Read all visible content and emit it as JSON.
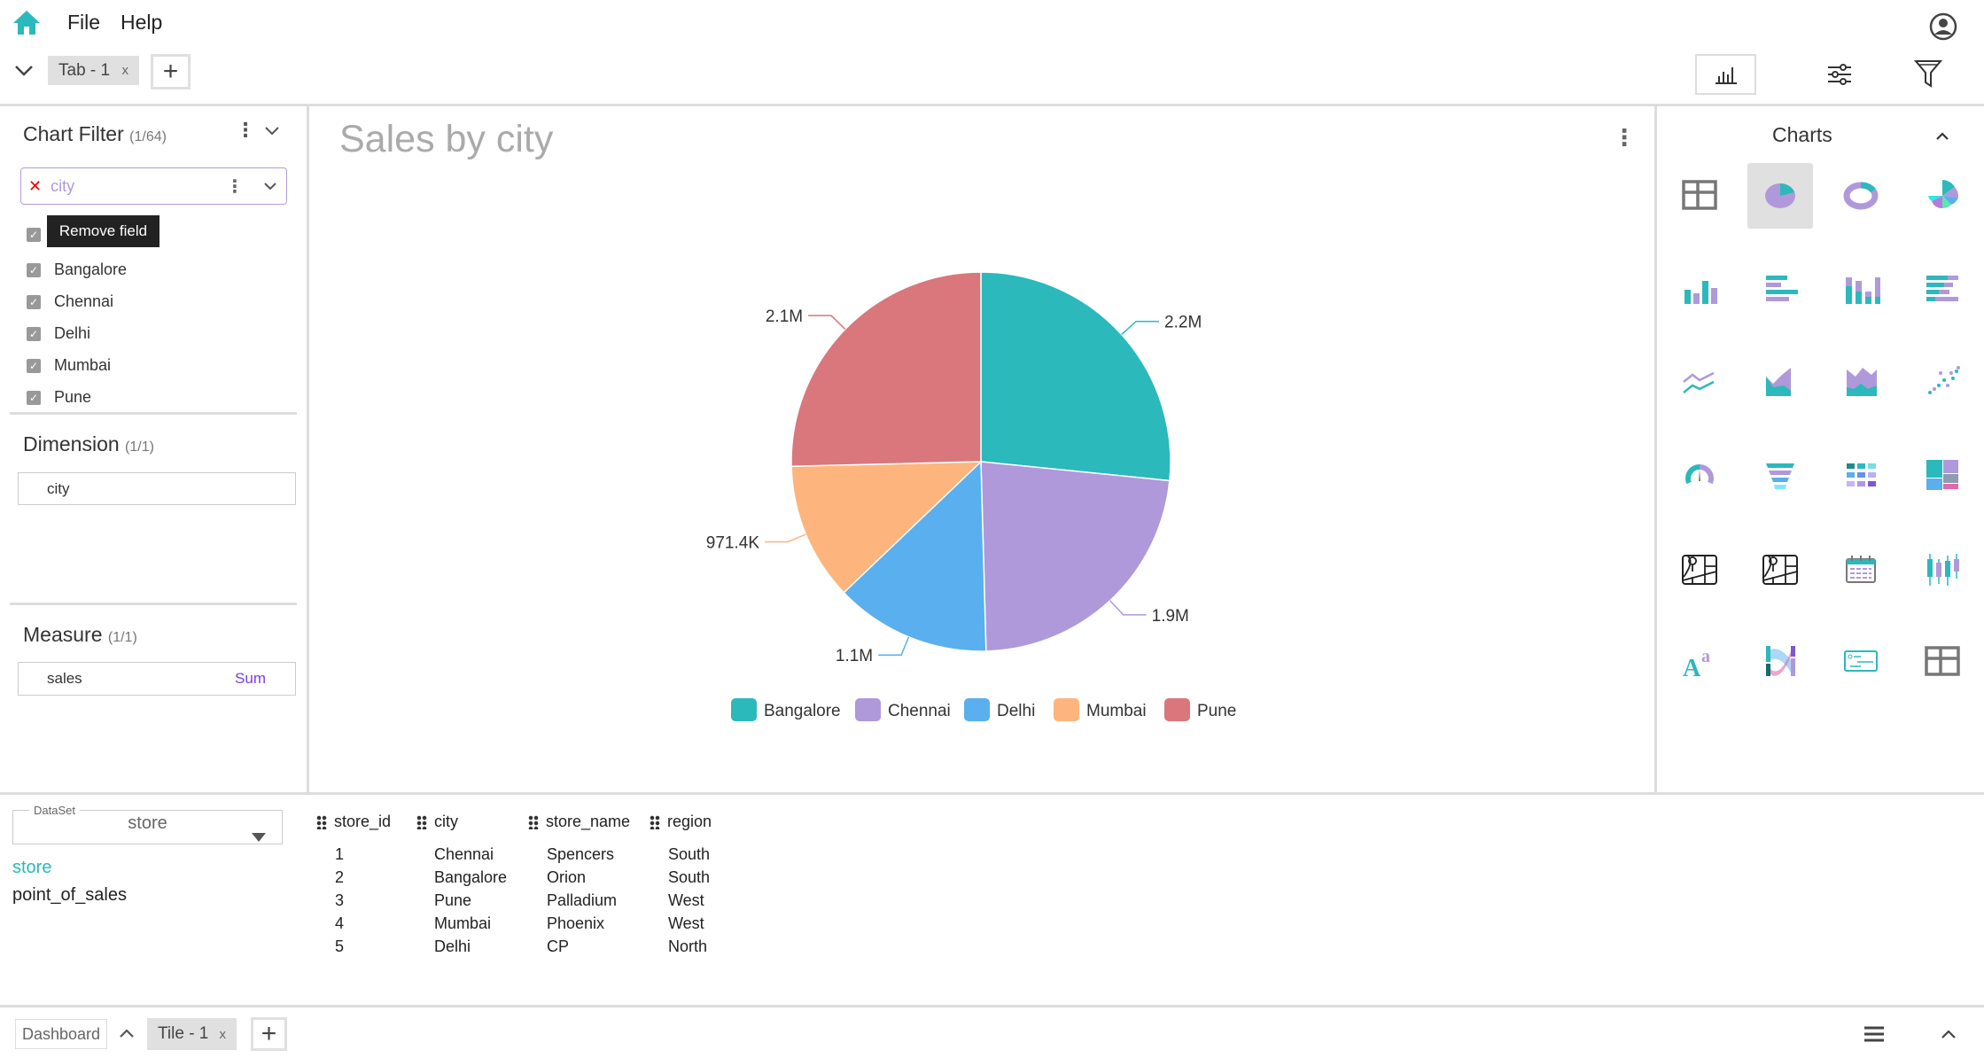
{
  "menu": {
    "file": "File",
    "help": "Help"
  },
  "tabs": {
    "active": "Tab - 1",
    "close": "x",
    "add": "+"
  },
  "filter": {
    "title": "Chart Filter",
    "count": "(1/64)",
    "field": "city",
    "tooltip": "Remove field",
    "items": [
      {
        "label": "",
        "checked": true
      },
      {
        "label": "Bangalore",
        "checked": true
      },
      {
        "label": "Chennai",
        "checked": true
      },
      {
        "label": "Delhi",
        "checked": true
      },
      {
        "label": "Mumbai",
        "checked": true
      },
      {
        "label": "Pune",
        "checked": true
      }
    ]
  },
  "dimension": {
    "title": "Dimension",
    "count": "(1/1)",
    "field": "city"
  },
  "measure": {
    "title": "Measure",
    "count": "(1/1)",
    "field": "sales",
    "agg": "Sum"
  },
  "chart_title": "Sales by city",
  "charts_panel": {
    "title": "Charts",
    "selected": "pie"
  },
  "chart_data": {
    "type": "pie",
    "title": "Sales by city",
    "categories": [
      "Bangalore",
      "Chennai",
      "Delhi",
      "Mumbai",
      "Pune"
    ],
    "values": [
      2200000,
      1900000,
      1100000,
      971400,
      2100000
    ],
    "labels": [
      "2.2M",
      "1.9M",
      "1.1M",
      "971.4K",
      "2.1M"
    ],
    "colors": [
      "#2bb9bb",
      "#af99da",
      "#5aafee",
      "#fdb57d",
      "#d9777c"
    ],
    "legend": "bottom"
  },
  "dataset": {
    "legend": "DataSet",
    "selected": "store",
    "tables": [
      "store",
      "point_of_sales"
    ],
    "active": "store"
  },
  "table": {
    "columns": [
      "store_id",
      "city",
      "store_name",
      "region"
    ],
    "rows": [
      [
        "1",
        "Chennai",
        "Spencers",
        "South"
      ],
      [
        "2",
        "Bangalore",
        "Orion",
        "South"
      ],
      [
        "3",
        "Pune",
        "Palladium",
        "West"
      ],
      [
        "4",
        "Mumbai",
        "Phoenix",
        "West"
      ],
      [
        "5",
        "Delhi",
        "CP",
        "North"
      ]
    ]
  },
  "footer": {
    "dashboard": "Dashboard",
    "tile": "Tile - 1",
    "close": "x",
    "add": "+"
  }
}
